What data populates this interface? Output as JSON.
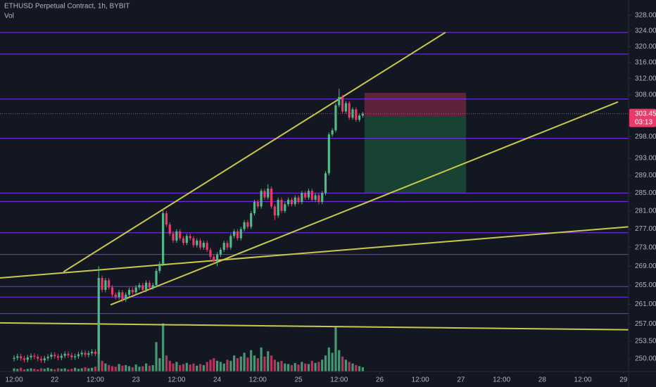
{
  "chart_data": {
    "type": "candlestick",
    "title": "ETHUSD Perpetual Contract, 1h, BYBIT",
    "volume_label": "Vol",
    "log_scale": true,
    "up_color": "#53b987",
    "down_color": "#e93a6b",
    "level_color": "#7b2ff7",
    "trend_color": "#c9c84c",
    "x": [
      0,
      1,
      2,
      3,
      4,
      5,
      6,
      7,
      8,
      9,
      10,
      11,
      12,
      13,
      14,
      15,
      16,
      17,
      18,
      19,
      20,
      21,
      22,
      23,
      24,
      25,
      26,
      27,
      28,
      29,
      30,
      31,
      32,
      33,
      34,
      35,
      36,
      37,
      38,
      39,
      40,
      41,
      42,
      43,
      44,
      45,
      46,
      47,
      48,
      49,
      50,
      51,
      52,
      53,
      54,
      55,
      56,
      57,
      58,
      59,
      60,
      61,
      62,
      63,
      64,
      65,
      66,
      67,
      68,
      69,
      70,
      71,
      72,
      73,
      74,
      75,
      76,
      77,
      78,
      79,
      80,
      81,
      82,
      83,
      84,
      85,
      86,
      87,
      88,
      89,
      90,
      91,
      92,
      93,
      94,
      95,
      96,
      97,
      98,
      99,
      100,
      101,
      102,
      103
    ],
    "open": [
      250.0,
      250.2,
      250.5,
      250.1,
      249.8,
      250.3,
      250.6,
      250.4,
      250.0,
      249.7,
      250.1,
      250.4,
      250.8,
      250.5,
      250.2,
      250.6,
      251.0,
      250.7,
      250.3,
      250.5,
      250.9,
      251.2,
      250.8,
      251.1,
      251.4,
      251.0,
      266.5,
      264.0,
      266.0,
      264.5,
      263.0,
      262.5,
      263.5,
      262.0,
      263.0,
      264.0,
      263.5,
      264.5,
      265.0,
      264.0,
      265.5,
      264.5,
      265.0,
      268.0,
      269.5,
      280.5,
      278.0,
      276.0,
      274.5,
      276.5,
      275.0,
      274.0,
      275.5,
      275.0,
      273.5,
      274.5,
      273.0,
      274.0,
      272.5,
      271.0,
      270.0,
      271.5,
      272.5,
      274.0,
      273.0,
      275.5,
      276.5,
      275.0,
      277.0,
      278.5,
      277.5,
      280.5,
      283.0,
      282.0,
      285.5,
      284.0,
      286.0,
      282.0,
      280.0,
      283.5,
      281.0,
      282.5,
      283.5,
      282.5,
      284.0,
      283.0,
      285.0,
      284.0,
      285.5,
      283.5,
      284.5,
      283.0,
      285.0,
      289.5,
      298.5,
      299.5,
      305.5,
      307.5,
      304.0,
      306.0,
      302.5,
      304.5,
      302.0,
      303.0
    ],
    "high": [
      250.7,
      251.0,
      251.0,
      250.6,
      250.8,
      251.1,
      251.1,
      250.9,
      250.5,
      250.6,
      250.9,
      251.3,
      251.3,
      251.0,
      251.1,
      251.5,
      251.5,
      251.2,
      251.0,
      251.4,
      251.7,
      251.7,
      251.6,
      251.9,
      251.9,
      269.0,
      267.0,
      266.5,
      266.5,
      265.0,
      263.5,
      264.0,
      264.0,
      263.5,
      264.5,
      264.5,
      265.0,
      265.5,
      265.5,
      266.0,
      266.0,
      265.5,
      268.5,
      270.0,
      281.5,
      281.0,
      278.5,
      276.5,
      277.0,
      277.0,
      275.5,
      276.0,
      276.0,
      275.5,
      275.0,
      275.0,
      274.5,
      274.5,
      273.0,
      271.5,
      272.0,
      273.0,
      274.5,
      274.5,
      276.0,
      277.0,
      277.0,
      277.5,
      279.0,
      279.0,
      281.0,
      283.5,
      283.5,
      286.0,
      286.0,
      287.0,
      286.5,
      282.5,
      284.0,
      284.0,
      283.0,
      284.0,
      284.0,
      284.5,
      284.5,
      285.5,
      285.5,
      286.0,
      286.0,
      285.0,
      285.0,
      285.5,
      290.0,
      299.0,
      300.0,
      306.0,
      309.5,
      308.0,
      306.5,
      306.5,
      305.0,
      305.0,
      303.5,
      303.9
    ],
    "low": [
      249.5,
      249.7,
      249.6,
      249.3,
      249.3,
      249.8,
      249.9,
      249.5,
      249.2,
      249.2,
      249.6,
      249.9,
      250.0,
      249.7,
      249.7,
      250.1,
      250.2,
      249.8,
      249.8,
      250.0,
      250.4,
      250.3,
      250.3,
      250.6,
      250.5,
      250.5,
      263.5,
      263.5,
      264.0,
      262.5,
      262.0,
      262.0,
      261.5,
      261.5,
      262.5,
      263.0,
      263.0,
      264.0,
      263.5,
      263.5,
      264.0,
      264.0,
      264.5,
      267.5,
      269.0,
      277.5,
      275.5,
      274.0,
      274.0,
      274.5,
      273.5,
      273.5,
      274.5,
      273.0,
      273.0,
      272.5,
      272.5,
      272.0,
      270.5,
      269.5,
      269.0,
      271.0,
      272.0,
      272.5,
      272.5,
      275.0,
      274.5,
      274.5,
      276.5,
      277.0,
      277.0,
      280.0,
      281.5,
      281.5,
      283.5,
      283.5,
      281.5,
      279.0,
      279.5,
      280.5,
      280.5,
      282.0,
      282.0,
      282.0,
      282.5,
      282.5,
      283.5,
      283.5,
      283.0,
      283.0,
      282.5,
      282.5,
      284.5,
      289.0,
      298.0,
      299.0,
      305.0,
      303.5,
      303.5,
      302.0,
      302.0,
      301.5,
      301.5,
      302.5
    ],
    "close": [
      250.2,
      250.5,
      250.1,
      249.8,
      250.3,
      250.6,
      250.4,
      250.0,
      249.7,
      250.1,
      250.4,
      250.8,
      250.5,
      250.2,
      250.6,
      251.0,
      250.7,
      250.3,
      250.5,
      250.9,
      251.2,
      250.8,
      251.1,
      251.4,
      251.0,
      266.5,
      264.0,
      266.0,
      264.5,
      263.0,
      262.5,
      263.5,
      262.0,
      263.0,
      264.0,
      263.5,
      264.5,
      265.0,
      264.0,
      265.5,
      264.5,
      265.0,
      268.0,
      269.5,
      280.5,
      278.0,
      276.0,
      274.5,
      276.5,
      275.0,
      274.0,
      275.5,
      275.0,
      273.5,
      274.5,
      273.0,
      274.0,
      272.5,
      271.0,
      270.0,
      271.5,
      272.5,
      274.0,
      273.0,
      275.5,
      276.5,
      275.0,
      277.0,
      278.5,
      277.5,
      280.5,
      283.0,
      282.0,
      285.5,
      284.0,
      286.0,
      282.0,
      280.0,
      283.5,
      281.0,
      282.5,
      283.5,
      282.5,
      284.0,
      283.0,
      285.0,
      284.0,
      285.5,
      283.5,
      284.5,
      283.0,
      285.0,
      289.5,
      298.5,
      299.5,
      305.5,
      307.5,
      304.0,
      306.0,
      302.5,
      304.5,
      302.0,
      303.0,
      303.45
    ],
    "volume": [
      6,
      5,
      7,
      4,
      5,
      6,
      5,
      4,
      6,
      5,
      7,
      5,
      4,
      6,
      5,
      6,
      4,
      5,
      7,
      5,
      6,
      8,
      6,
      7,
      9,
      95,
      20,
      15,
      12,
      10,
      9,
      14,
      11,
      12,
      10,
      8,
      13,
      9,
      10,
      15,
      11,
      12,
      55,
      25,
      90,
      30,
      20,
      15,
      18,
      12,
      14,
      16,
      13,
      15,
      11,
      14,
      12,
      18,
      22,
      25,
      20,
      18,
      15,
      22,
      20,
      30,
      25,
      28,
      35,
      26,
      40,
      30,
      25,
      45,
      28,
      38,
      30,
      22,
      18,
      20,
      15,
      14,
      12,
      16,
      13,
      18,
      15,
      14,
      20,
      16,
      18,
      22,
      30,
      45,
      35,
      85,
      40,
      28,
      22,
      18,
      15,
      12,
      10,
      8
    ],
    "xlim": [
      -4.16,
      181.5
    ],
    "xticks": [
      {
        "value": 0,
        "label": "12:00"
      },
      {
        "value": 12,
        "label": "22"
      },
      {
        "value": 24,
        "label": "12:00"
      },
      {
        "value": 36,
        "label": "23"
      },
      {
        "value": 48,
        "label": "12:00"
      },
      {
        "value": 60,
        "label": "24"
      },
      {
        "value": 72,
        "label": "12:00"
      },
      {
        "value": 84,
        "label": "25"
      },
      {
        "value": 96,
        "label": "12:00"
      },
      {
        "value": 108,
        "label": "26"
      },
      {
        "value": 120,
        "label": "12:00"
      },
      {
        "value": 132,
        "label": "27"
      },
      {
        "value": 144,
        "label": "12:00"
      },
      {
        "value": 156,
        "label": "28"
      },
      {
        "value": 168,
        "label": "12:00"
      },
      {
        "value": 180,
        "label": "29"
      }
    ],
    "ylim": [
      247.5,
      332
    ],
    "yticks": [
      {
        "value": 328,
        "label": "328.00"
      },
      {
        "value": 324,
        "label": "324.00"
      },
      {
        "value": 320,
        "label": "320.00"
      },
      {
        "value": 316,
        "label": "316.00"
      },
      {
        "value": 312,
        "label": "312.00"
      },
      {
        "value": 308,
        "label": "308.00"
      },
      {
        "value": 298,
        "label": "298.00"
      },
      {
        "value": 293,
        "label": "293.00"
      },
      {
        "value": 289,
        "label": "289.00"
      },
      {
        "value": 285,
        "label": "285.00"
      },
      {
        "value": 281,
        "label": "281.00"
      },
      {
        "value": 277,
        "label": "277.00"
      },
      {
        "value": 273,
        "label": "273.00"
      },
      {
        "value": 269,
        "label": "269.00"
      },
      {
        "value": 265,
        "label": "265.00"
      },
      {
        "value": 261,
        "label": "261.00"
      },
      {
        "value": 257,
        "label": "257.00"
      },
      {
        "value": 253.5,
        "label": "253.50"
      },
      {
        "value": 250,
        "label": "250.00"
      }
    ],
    "current_price": 303.45,
    "countdown": "03:13",
    "levels": [
      323.6,
      318.1,
      307.0,
      297.6,
      285.0,
      283.1,
      276.2,
      271.5,
      264.7,
      262.5,
      259.1
    ],
    "trend_lines": [
      {
        "x": [
          14.6,
          127.4
        ],
        "y": [
          267.8,
          323.6
        ]
      },
      {
        "x": [
          28.5,
          178.4
        ],
        "y": [
          260.9,
          306.3
        ]
      },
      {
        "x": [
          -4.16,
          181.5
        ],
        "y": [
          266.5,
          277.5
        ]
      },
      {
        "x": [
          -4.16,
          181.5
        ],
        "y": [
          257.2,
          255.8
        ]
      }
    ],
    "position": {
      "x": [
        103.5,
        133.5
      ],
      "stop": 308.5,
      "entry": 302.8,
      "target": 285.0
    }
  }
}
